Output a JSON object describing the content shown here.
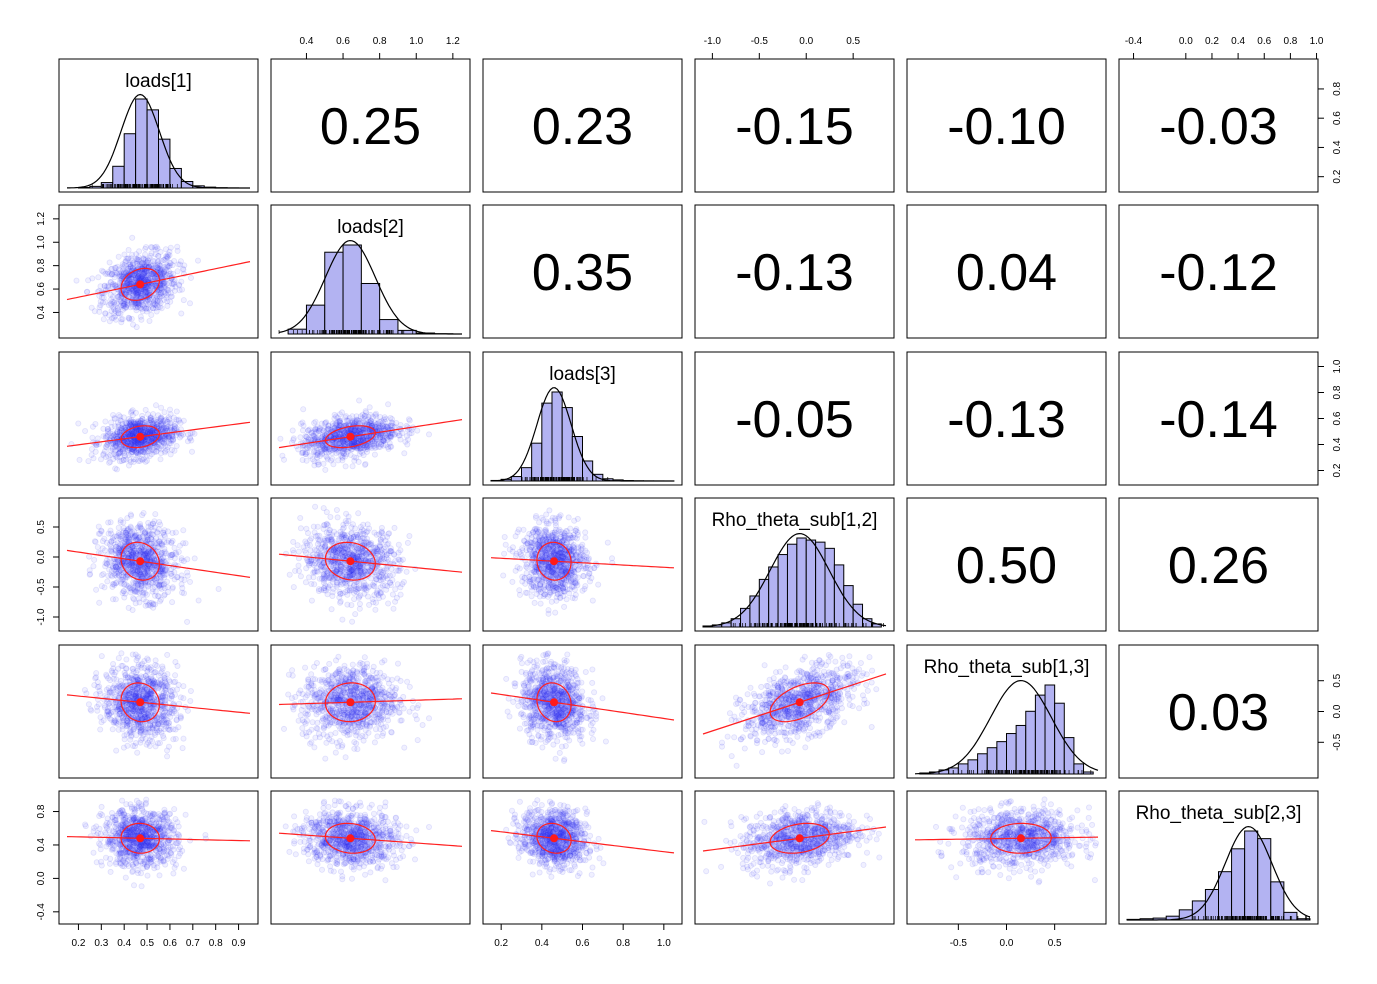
{
  "chart_data": {
    "type": "scatter",
    "layout": "pairs-panels",
    "variables": [
      "loads[1]",
      "loads[2]",
      "loads[3]",
      "Rho_theta_sub[1,2]",
      "Rho_theta_sub[1,3]",
      "Rho_theta_sub[2,3]"
    ],
    "correlations": [
      {
        "row": 1,
        "col": 2,
        "value": 0.25,
        "label": "0.25"
      },
      {
        "row": 1,
        "col": 3,
        "value": 0.23,
        "label": "0.23"
      },
      {
        "row": 1,
        "col": 4,
        "value": -0.15,
        "label": "-0.15"
      },
      {
        "row": 1,
        "col": 5,
        "value": -0.1,
        "label": "-0.10"
      },
      {
        "row": 1,
        "col": 6,
        "value": -0.03,
        "label": "-0.03"
      },
      {
        "row": 2,
        "col": 3,
        "value": 0.35,
        "label": "0.35"
      },
      {
        "row": 2,
        "col": 4,
        "value": -0.13,
        "label": "-0.13"
      },
      {
        "row": 2,
        "col": 5,
        "value": 0.04,
        "label": "0.04"
      },
      {
        "row": 2,
        "col": 6,
        "value": -0.12,
        "label": "-0.12"
      },
      {
        "row": 3,
        "col": 4,
        "value": -0.05,
        "label": "-0.05"
      },
      {
        "row": 3,
        "col": 5,
        "value": -0.13,
        "label": "-0.13"
      },
      {
        "row": 3,
        "col": 6,
        "value": -0.14,
        "label": "-0.14"
      },
      {
        "row": 4,
        "col": 5,
        "value": 0.5,
        "label": "0.50"
      },
      {
        "row": 4,
        "col": 6,
        "value": 0.26,
        "label": "0.26"
      },
      {
        "row": 5,
        "col": 6,
        "value": 0.03,
        "label": "0.03"
      }
    ],
    "ranges": [
      [
        0.15,
        0.95
      ],
      [
        0.25,
        1.25
      ],
      [
        0.15,
        1.05
      ],
      [
        -1.1,
        0.85
      ],
      [
        -0.95,
        0.95
      ],
      [
        -0.45,
        0.95
      ]
    ],
    "means": [
      0.47,
      0.64,
      0.46,
      -0.07,
      0.15,
      0.48
    ],
    "sds": [
      0.08,
      0.13,
      0.08,
      0.3,
      0.3,
      0.17
    ],
    "histograms": [
      {
        "bins": [
          0.2,
          0.25,
          0.3,
          0.35,
          0.4,
          0.45,
          0.5,
          0.55,
          0.6,
          0.65,
          0.7,
          0.75,
          0.8,
          0.85,
          0.9
        ],
        "counts": [
          0.5,
          1.5,
          5,
          20,
          50,
          82,
          72,
          45,
          18,
          6,
          2,
          0.8,
          0.3,
          0.1
        ]
      },
      {
        "bins": [
          0.3,
          0.4,
          0.5,
          0.6,
          0.7,
          0.8,
          0.9,
          1.0,
          1.1,
          1.2
        ],
        "counts": [
          4,
          24,
          68,
          74,
          42,
          12,
          3,
          0.8,
          0.2
        ]
      },
      {
        "bins": [
          0.15,
          0.2,
          0.25,
          0.3,
          0.35,
          0.4,
          0.45,
          0.5,
          0.55,
          0.6,
          0.65,
          0.7,
          0.75,
          0.8,
          0.85,
          0.9,
          0.95,
          1.0,
          1.05
        ],
        "counts": [
          0.5,
          1.5,
          4,
          12,
          34,
          70,
          80,
          66,
          40,
          18,
          6,
          2,
          1,
          0.4,
          0.2,
          0.1,
          0.05,
          0.02
        ]
      },
      {
        "bins": [
          -1.1,
          -1.0,
          -0.9,
          -0.8,
          -0.7,
          -0.6,
          -0.5,
          -0.4,
          -0.3,
          -0.2,
          -0.1,
          0.0,
          0.1,
          0.2,
          0.3,
          0.4,
          0.5,
          0.6,
          0.7,
          0.8
        ],
        "counts": [
          1,
          2,
          4,
          8,
          18,
          30,
          46,
          58,
          70,
          80,
          86,
          84,
          82,
          76,
          60,
          40,
          22,
          8,
          3
        ]
      },
      {
        "bins": [
          -0.9,
          -0.8,
          -0.7,
          -0.6,
          -0.5,
          -0.4,
          -0.3,
          -0.2,
          -0.1,
          0.0,
          0.1,
          0.2,
          0.3,
          0.4,
          0.5,
          0.6,
          0.7,
          0.8,
          0.9
        ],
        "counts": [
          1,
          2,
          4,
          6,
          10,
          14,
          20,
          26,
          32,
          40,
          48,
          62,
          78,
          88,
          70,
          36,
          10,
          2
        ]
      },
      {
        "bins": [
          -0.45,
          -0.35,
          -0.25,
          -0.15,
          -0.05,
          0.05,
          0.15,
          0.25,
          0.35,
          0.45,
          0.55,
          0.65,
          0.75,
          0.85,
          0.95
        ],
        "counts": [
          0.5,
          1,
          1.5,
          3,
          8,
          15,
          24,
          38,
          56,
          70,
          64,
          30,
          6,
          1
        ]
      }
    ],
    "axis_ticks": {
      "top": [
        {
          "col": 2,
          "values": [
            0.4,
            0.6,
            0.8,
            1.0,
            1.2
          ],
          "labels": [
            "0.4",
            "0.6",
            "0.8",
            "1.0",
            "1.2"
          ]
        },
        {
          "col": 4,
          "values": [
            -1.0,
            -0.5,
            0.0,
            0.5
          ],
          "labels": [
            "-1.0",
            "-0.5",
            "0.0",
            "0.5"
          ]
        },
        {
          "col": 6,
          "values": [
            -0.4,
            0.0,
            0.2,
            0.4,
            0.6,
            0.8,
            1.0
          ],
          "labels": [
            "-0.4",
            "0.0",
            "0.2",
            "0.4",
            "0.6",
            "0.8",
            "1.0"
          ]
        }
      ],
      "bottom": [
        {
          "col": 1,
          "values": [
            0.2,
            0.3,
            0.4,
            0.5,
            0.6,
            0.7,
            0.8,
            0.9
          ],
          "labels": [
            "0.2",
            "0.3",
            "0.4",
            "0.5",
            "0.6",
            "0.7",
            "0.8",
            "0.9"
          ]
        },
        {
          "col": 3,
          "values": [
            0.2,
            0.4,
            0.6,
            0.8,
            1.0
          ],
          "labels": [
            "0.2",
            "0.4",
            "0.6",
            "0.8",
            "1.0"
          ]
        },
        {
          "col": 5,
          "values": [
            -0.5,
            0.0,
            0.5
          ],
          "labels": [
            "-0.5",
            "0.0",
            "0.5"
          ]
        }
      ],
      "left": [
        {
          "row": 2,
          "values": [
            0.4,
            0.6,
            0.8,
            1.0,
            1.2
          ],
          "labels": [
            "0.4",
            "0.6",
            "0.8",
            "1.0",
            "1.2"
          ]
        },
        {
          "row": 4,
          "values": [
            -1.0,
            -0.5,
            0.0,
            0.5
          ],
          "labels": [
            "-1.0",
            "-0.5",
            "0.0",
            "0.5"
          ]
        },
        {
          "row": 6,
          "values": [
            -0.4,
            0.0,
            0.4,
            0.8
          ],
          "labels": [
            "-0.4",
            "0.0",
            "0.4",
            "0.8"
          ]
        }
      ],
      "right": [
        {
          "row": 1,
          "values": [
            0.2,
            0.4,
            0.6,
            0.8
          ],
          "labels": [
            "0.2",
            "0.4",
            "0.6",
            "0.8"
          ]
        },
        {
          "row": 3,
          "values": [
            0.2,
            0.4,
            0.6,
            0.8,
            1.0
          ],
          "labels": [
            "0.2",
            "0.4",
            "0.6",
            "0.8",
            "1.0"
          ]
        },
        {
          "row": 5,
          "values": [
            -0.5,
            0.0,
            0.5
          ],
          "labels": [
            "-0.5",
            "0.0",
            "0.5"
          ]
        }
      ]
    },
    "colors": {
      "points": "#3c3cff",
      "histogram_fill": "#b3b3f2",
      "fit_line": "#ff2020",
      "text": "#000000"
    },
    "grid": false
  }
}
